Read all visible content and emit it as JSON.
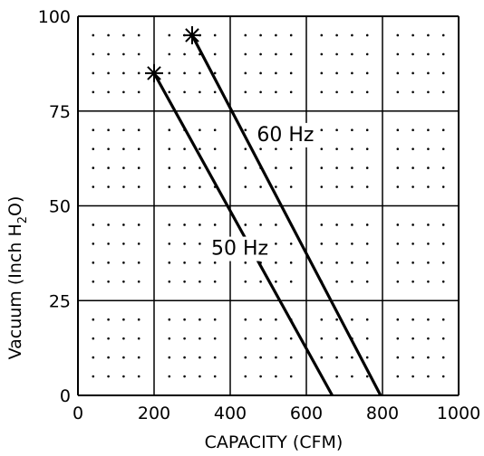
{
  "chart_data": {
    "type": "line",
    "xlabel": "CAPACITY (CFM)",
    "ylabel_main": "Vacuum (Inch H",
    "ylabel_sub": "2",
    "ylabel_tail": "O)",
    "xlim": [
      0,
      1000
    ],
    "ylim": [
      0,
      100
    ],
    "x_ticks": [
      "0",
      "200",
      "400",
      "600",
      "800",
      "1000"
    ],
    "y_ticks": [
      "0",
      "25",
      "50",
      "75",
      "100"
    ],
    "x_tick_values": [
      0,
      200,
      400,
      600,
      800,
      1000
    ],
    "y_tick_values": [
      0,
      25,
      50,
      75,
      100
    ],
    "grid": "major lines with dotted minor grid",
    "series": [
      {
        "name": "60 Hz",
        "x": [
          300,
          795
        ],
        "y": [
          95,
          0
        ],
        "marker": "asterisk at max vacuum"
      },
      {
        "name": "50 Hz",
        "x": [
          200,
          668
        ],
        "y": [
          85,
          0
        ],
        "marker": "asterisk at max vacuum"
      }
    ],
    "series_label_anchor": [
      {
        "x": 545,
        "y": 69
      },
      {
        "x": 425,
        "y": 39
      }
    ],
    "line_color": "#000000"
  }
}
